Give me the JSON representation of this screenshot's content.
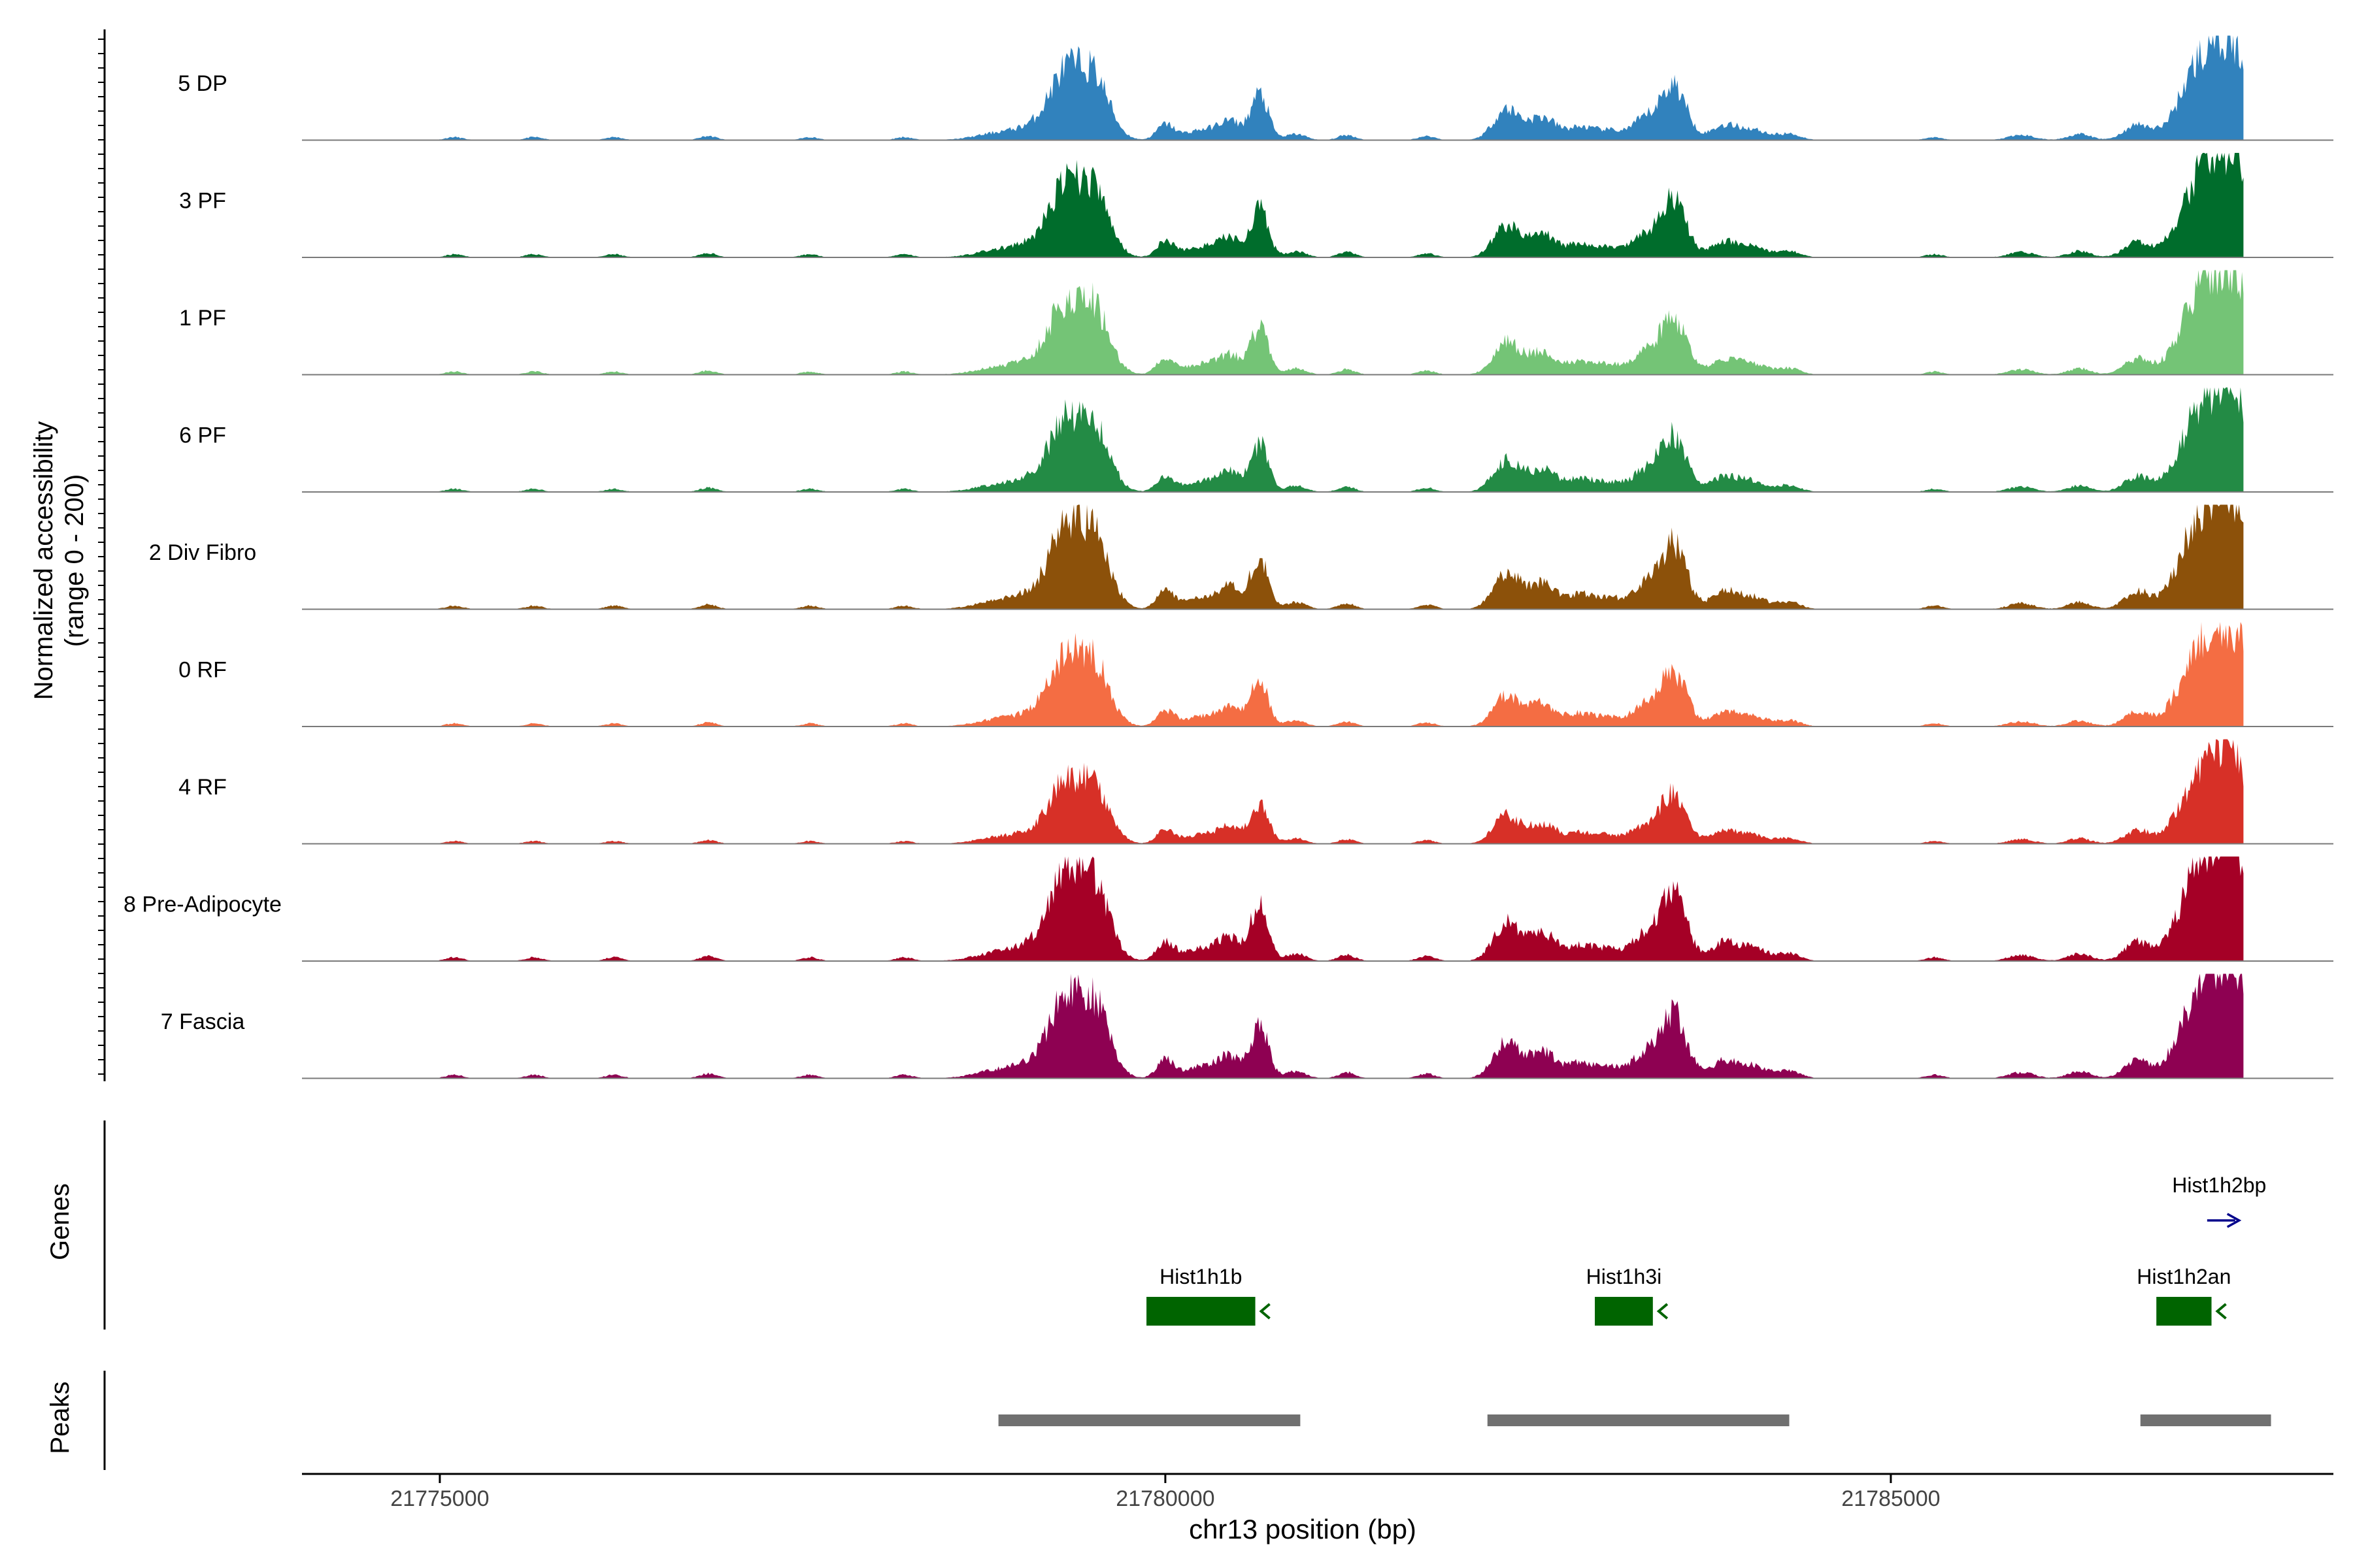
{
  "chart_data": {
    "type": "area",
    "title": "",
    "xlabel": "chr13 position (bp)",
    "ylabel": "Normalized accessibility (range 0 - 200)",
    "ylabel_lines": [
      "Normalized accessibility",
      "(range 0 - 200)"
    ],
    "xlim": [
      21774050,
      21788050
    ],
    "x_ticks": [
      21775000,
      21780000,
      21785000
    ],
    "x_tick_labels": [
      "21775000",
      "21780000",
      "21785000"
    ],
    "y_range": [
      0,
      200
    ],
    "track_end": 21787430,
    "peak_definitions": [
      {
        "c": 21775100,
        "h": 0.03,
        "w": 60
      },
      {
        "c": 21775650,
        "h": 0.03,
        "w": 60
      },
      {
        "c": 21776200,
        "h": 0.03,
        "w": 60
      },
      {
        "c": 21776850,
        "h": 0.04,
        "w": 60
      },
      {
        "c": 21777550,
        "h": 0.03,
        "w": 60
      },
      {
        "c": 21778200,
        "h": 0.03,
        "w": 60
      },
      {
        "c": 21778900,
        "h": 0.08,
        "w": 180
      },
      {
        "c": 21779250,
        "h": 0.25,
        "w": 150
      },
      {
        "c": 21779500,
        "h": 0.62,
        "w": 110
      },
      {
        "c": 21779300,
        "h": 0.35,
        "w": 90
      },
      {
        "c": 21780000,
        "h": 0.15,
        "w": 60
      },
      {
        "c": 21780250,
        "h": 0.1,
        "w": 120
      },
      {
        "c": 21780450,
        "h": 0.17,
        "w": 80
      },
      {
        "c": 21780650,
        "h": 0.45,
        "w": 60
      },
      {
        "c": 21780900,
        "h": 0.06,
        "w": 70
      },
      {
        "c": 21781250,
        "h": 0.05,
        "w": 60
      },
      {
        "c": 21781800,
        "h": 0.04,
        "w": 60
      },
      {
        "c": 21782350,
        "h": 0.3,
        "w": 90
      },
      {
        "c": 21782600,
        "h": 0.22,
        "w": 100
      },
      {
        "c": 21782850,
        "h": 0.1,
        "w": 80
      },
      {
        "c": 21783050,
        "h": 0.1,
        "w": 120
      },
      {
        "c": 21783300,
        "h": 0.18,
        "w": 80
      },
      {
        "c": 21783500,
        "h": 0.55,
        "w": 90
      },
      {
        "c": 21783850,
        "h": 0.14,
        "w": 90
      },
      {
        "c": 21784050,
        "h": 0.1,
        "w": 100
      },
      {
        "c": 21784300,
        "h": 0.06,
        "w": 80
      },
      {
        "c": 21785300,
        "h": 0.03,
        "w": 60
      },
      {
        "c": 21785900,
        "h": 0.05,
        "w": 90
      },
      {
        "c": 21786300,
        "h": 0.06,
        "w": 80
      },
      {
        "c": 21786700,
        "h": 0.15,
        "w": 90
      },
      {
        "c": 21787100,
        "h": 0.55,
        "w": 130
      },
      {
        "c": 21787350,
        "h": 0.9,
        "w": 150
      }
    ],
    "series": [
      {
        "name": "5 DP",
        "color": "#3182BD",
        "scale": 0.58,
        "seed": 11
      },
      {
        "name": "3 PF",
        "color": "#006D2C",
        "scale": 0.6,
        "seed": 23
      },
      {
        "name": "1 PF",
        "color": "#74C476",
        "scale": 0.6,
        "seed": 37
      },
      {
        "name": "6 PF",
        "color": "#238B45",
        "scale": 0.6,
        "seed": 41
      },
      {
        "name": "2 Div Fibro",
        "color": "#8C510A",
        "scale": 0.68,
        "seed": 53
      },
      {
        "name": "0 RF",
        "color": "#F46D43",
        "scale": 0.58,
        "seed": 67
      },
      {
        "name": "4 RF",
        "color": "#D73027",
        "scale": 0.52,
        "seed": 71
      },
      {
        "name": "8 Pre-Adipocyte",
        "color": "#A50026",
        "scale": 0.72,
        "seed": 83
      },
      {
        "name": "7 Fascia",
        "color": "#8E0152",
        "scale": 0.68,
        "seed": 97
      }
    ],
    "genes_label": "Genes",
    "peaks_label": "Peaks",
    "genes": [
      {
        "name": "Hist1h1b",
        "start": 21779870,
        "end": 21780620,
        "strand": "-",
        "color": "#006400"
      },
      {
        "name": "Hist1h3i",
        "start": 21782960,
        "end": 21783360,
        "strand": "-",
        "color": "#006400"
      },
      {
        "name": "Hist1h2an",
        "start": 21786830,
        "end": 21787210,
        "strand": "-",
        "color": "#006400"
      },
      {
        "name": "Hist1h2bp",
        "start": 21787180,
        "end": 21787400,
        "strand": "+",
        "color": "#00008B"
      }
    ],
    "peaks": [
      {
        "start": 21778850,
        "end": 21780930
      },
      {
        "start": 21782220,
        "end": 21784300
      },
      {
        "start": 21786720,
        "end": 21787620
      }
    ],
    "peak_color": "#707070"
  }
}
